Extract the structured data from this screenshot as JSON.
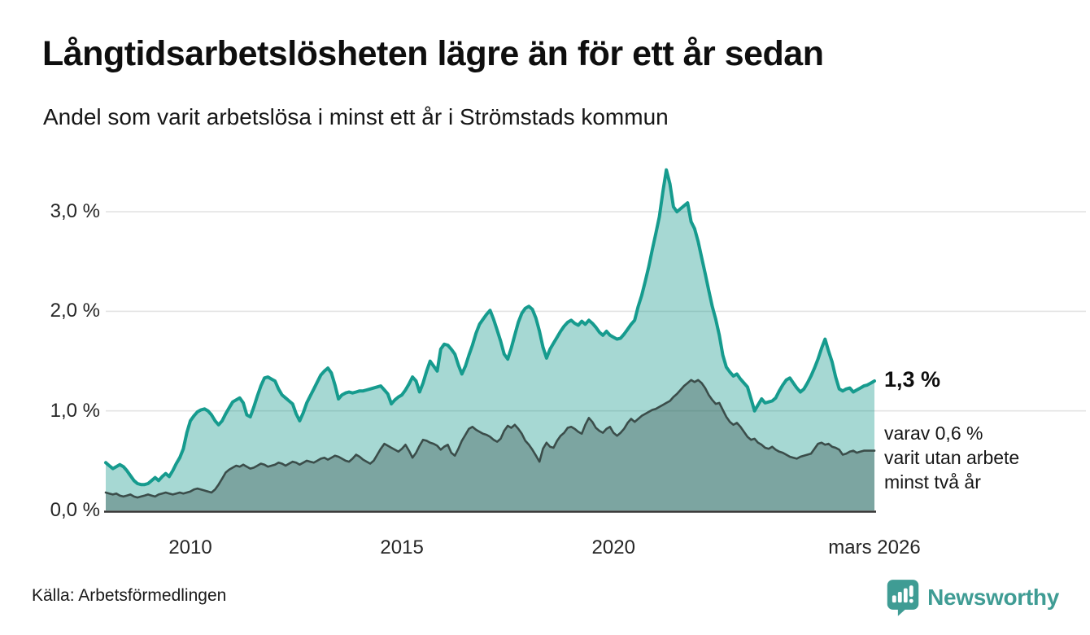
{
  "header": {
    "title": "Långtidsarbetslösheten lägre än för ett år sedan",
    "subtitle": "Andel som varit arbetslösa i minst ett år i Strömstads kommun"
  },
  "chart_data": {
    "type": "area",
    "unit": "%",
    "x_start": "2008-01",
    "x_end": "2026-03",
    "points_per_series": 219,
    "ylim": [
      0,
      3.5
    ],
    "grid": "horizontal",
    "colors": {
      "line_total": "#169b8e",
      "fill_total": "rgba(22,153,140,0.38)",
      "line_two_years": "#3b4d4a",
      "fill_two_years": "rgba(47,72,68,0.35)",
      "gridline": "#e3e3e3",
      "axis": "#333333"
    },
    "y_ticks": [
      {
        "label": "0,0 %",
        "value": 0.0
      },
      {
        "label": "1,0 %",
        "value": 1.0
      },
      {
        "label": "2,0 %",
        "value": 2.0
      },
      {
        "label": "3,0 %",
        "value": 3.0
      }
    ],
    "x_ticks": [
      {
        "label": "2010",
        "month_index": 24
      },
      {
        "label": "2015",
        "month_index": 84
      },
      {
        "label": "2020",
        "month_index": 144
      },
      {
        "label": "mars 2026",
        "month_index": 218
      }
    ],
    "series": [
      {
        "name": "Arbetslösa minst ett år",
        "values": [
          0.48,
          0.45,
          0.42,
          0.44,
          0.46,
          0.44,
          0.4,
          0.35,
          0.3,
          0.27,
          0.26,
          0.26,
          0.27,
          0.3,
          0.33,
          0.3,
          0.34,
          0.37,
          0.34,
          0.4,
          0.47,
          0.53,
          0.62,
          0.78,
          0.9,
          0.95,
          0.99,
          1.01,
          1.02,
          1.0,
          0.96,
          0.9,
          0.86,
          0.9,
          0.97,
          1.03,
          1.09,
          1.11,
          1.13,
          1.08,
          0.96,
          0.94,
          1.04,
          1.15,
          1.25,
          1.33,
          1.34,
          1.32,
          1.3,
          1.22,
          1.16,
          1.13,
          1.1,
          1.07,
          0.97,
          0.9,
          0.98,
          1.08,
          1.15,
          1.22,
          1.29,
          1.36,
          1.4,
          1.43,
          1.38,
          1.26,
          1.12,
          1.16,
          1.18,
          1.19,
          1.18,
          1.19,
          1.2,
          1.2,
          1.21,
          1.22,
          1.23,
          1.24,
          1.25,
          1.21,
          1.17,
          1.07,
          1.11,
          1.14,
          1.16,
          1.21,
          1.27,
          1.34,
          1.3,
          1.19,
          1.28,
          1.4,
          1.5,
          1.45,
          1.4,
          1.62,
          1.67,
          1.66,
          1.62,
          1.57,
          1.46,
          1.37,
          1.45,
          1.56,
          1.66,
          1.78,
          1.87,
          1.92,
          1.97,
          2.01,
          1.92,
          1.81,
          1.7,
          1.57,
          1.52,
          1.63,
          1.76,
          1.89,
          1.98,
          2.03,
          2.05,
          2.02,
          1.93,
          1.8,
          1.64,
          1.53,
          1.62,
          1.68,
          1.74,
          1.8,
          1.85,
          1.89,
          1.91,
          1.88,
          1.86,
          1.9,
          1.87,
          1.91,
          1.88,
          1.84,
          1.79,
          1.76,
          1.8,
          1.76,
          1.74,
          1.72,
          1.73,
          1.77,
          1.82,
          1.87,
          1.91,
          2.05,
          2.16,
          2.3,
          2.45,
          2.62,
          2.78,
          2.95,
          3.2,
          3.42,
          3.28,
          3.05,
          3.0,
          3.03,
          3.06,
          3.09,
          2.9,
          2.83,
          2.7,
          2.54,
          2.38,
          2.21,
          2.05,
          1.92,
          1.76,
          1.56,
          1.44,
          1.39,
          1.35,
          1.37,
          1.32,
          1.28,
          1.24,
          1.12,
          1.0,
          1.06,
          1.12,
          1.08,
          1.09,
          1.1,
          1.13,
          1.2,
          1.26,
          1.31,
          1.33,
          1.28,
          1.23,
          1.19,
          1.22,
          1.28,
          1.35,
          1.43,
          1.52,
          1.63,
          1.72,
          1.6,
          1.49,
          1.34,
          1.22,
          1.2,
          1.22,
          1.23,
          1.19,
          1.21,
          1.23,
          1.25,
          1.26,
          1.28,
          1.3
        ]
      },
      {
        "name": "Arbetslösa minst två år",
        "values": [
          0.18,
          0.17,
          0.16,
          0.17,
          0.15,
          0.14,
          0.15,
          0.16,
          0.14,
          0.13,
          0.14,
          0.15,
          0.16,
          0.15,
          0.14,
          0.16,
          0.17,
          0.18,
          0.17,
          0.16,
          0.17,
          0.18,
          0.17,
          0.18,
          0.19,
          0.21,
          0.22,
          0.21,
          0.2,
          0.19,
          0.18,
          0.21,
          0.26,
          0.32,
          0.38,
          0.41,
          0.43,
          0.45,
          0.44,
          0.46,
          0.44,
          0.42,
          0.43,
          0.45,
          0.47,
          0.46,
          0.44,
          0.45,
          0.46,
          0.48,
          0.47,
          0.45,
          0.47,
          0.49,
          0.48,
          0.46,
          0.48,
          0.5,
          0.49,
          0.48,
          0.5,
          0.52,
          0.53,
          0.51,
          0.53,
          0.55,
          0.54,
          0.52,
          0.5,
          0.49,
          0.52,
          0.56,
          0.54,
          0.51,
          0.49,
          0.47,
          0.5,
          0.56,
          0.62,
          0.67,
          0.65,
          0.63,
          0.61,
          0.59,
          0.62,
          0.66,
          0.6,
          0.53,
          0.58,
          0.65,
          0.71,
          0.7,
          0.68,
          0.67,
          0.65,
          0.61,
          0.64,
          0.66,
          0.58,
          0.55,
          0.62,
          0.7,
          0.76,
          0.82,
          0.84,
          0.81,
          0.79,
          0.77,
          0.76,
          0.74,
          0.71,
          0.69,
          0.72,
          0.8,
          0.85,
          0.83,
          0.86,
          0.82,
          0.77,
          0.7,
          0.66,
          0.61,
          0.55,
          0.49,
          0.62,
          0.68,
          0.64,
          0.63,
          0.7,
          0.75,
          0.78,
          0.83,
          0.84,
          0.82,
          0.79,
          0.77,
          0.86,
          0.93,
          0.89,
          0.83,
          0.8,
          0.78,
          0.82,
          0.84,
          0.78,
          0.75,
          0.78,
          0.82,
          0.88,
          0.92,
          0.89,
          0.92,
          0.95,
          0.97,
          0.99,
          1.01,
          1.02,
          1.04,
          1.06,
          1.08,
          1.1,
          1.14,
          1.17,
          1.21,
          1.25,
          1.28,
          1.31,
          1.29,
          1.31,
          1.28,
          1.23,
          1.16,
          1.11,
          1.07,
          1.08,
          1.01,
          0.94,
          0.89,
          0.86,
          0.88,
          0.84,
          0.79,
          0.74,
          0.71,
          0.72,
          0.68,
          0.66,
          0.63,
          0.62,
          0.64,
          0.61,
          0.59,
          0.58,
          0.56,
          0.54,
          0.53,
          0.52,
          0.54,
          0.55,
          0.56,
          0.57,
          0.62,
          0.67,
          0.68,
          0.66,
          0.67,
          0.64,
          0.63,
          0.61,
          0.56,
          0.57,
          0.59,
          0.6,
          0.58,
          0.59,
          0.6,
          0.6,
          0.6,
          0.6
        ]
      }
    ],
    "annotations": {
      "end_value": "1,3 %",
      "secondary": [
        "varav 0,6 %",
        "varit utan arbete",
        "minst två år"
      ]
    }
  },
  "footer": {
    "source": "Källa: Arbetsförmedlingen",
    "brand": "Newsworthy"
  }
}
